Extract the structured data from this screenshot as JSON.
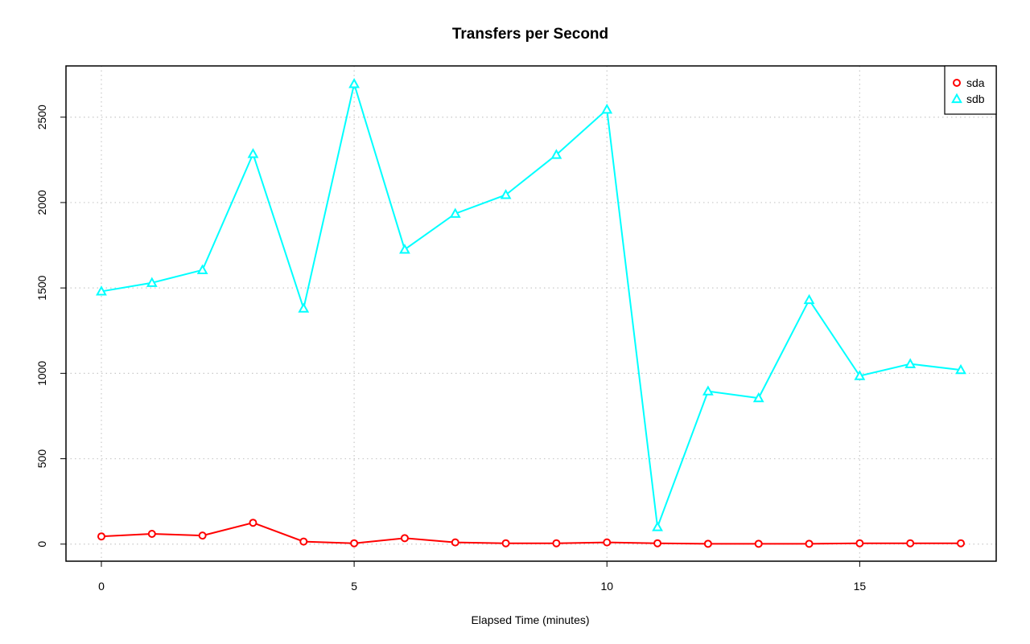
{
  "chart_data": {
    "type": "line",
    "title": "Transfers per Second",
    "xlabel": "Elapsed Time (minutes)",
    "ylabel": "",
    "xlim": [
      -0.7,
      17.7
    ],
    "ylim": [
      -100,
      2800
    ],
    "x_ticks": [
      0,
      5,
      10,
      15
    ],
    "y_ticks": [
      0,
      500,
      1000,
      1500,
      2000,
      2500
    ],
    "grid": true,
    "legend_position": "top-right",
    "x": [
      0,
      1,
      2,
      3,
      4,
      5,
      6,
      7,
      8,
      9,
      10,
      11,
      12,
      13,
      14,
      15,
      16,
      17
    ],
    "series": [
      {
        "name": "sda",
        "color": "#ff0000",
        "marker": "circle",
        "values": [
          45,
          60,
          50,
          125,
          15,
          5,
          35,
          10,
          5,
          5,
          10,
          5,
          2,
          2,
          2,
          5,
          5,
          5
        ]
      },
      {
        "name": "sdb",
        "color": "#00ffff",
        "marker": "triangle",
        "values": [
          1480,
          1530,
          1605,
          2285,
          1380,
          2695,
          1725,
          1935,
          2045,
          2280,
          2545,
          100,
          895,
          855,
          1430,
          985,
          1055,
          1020
        ]
      }
    ]
  }
}
